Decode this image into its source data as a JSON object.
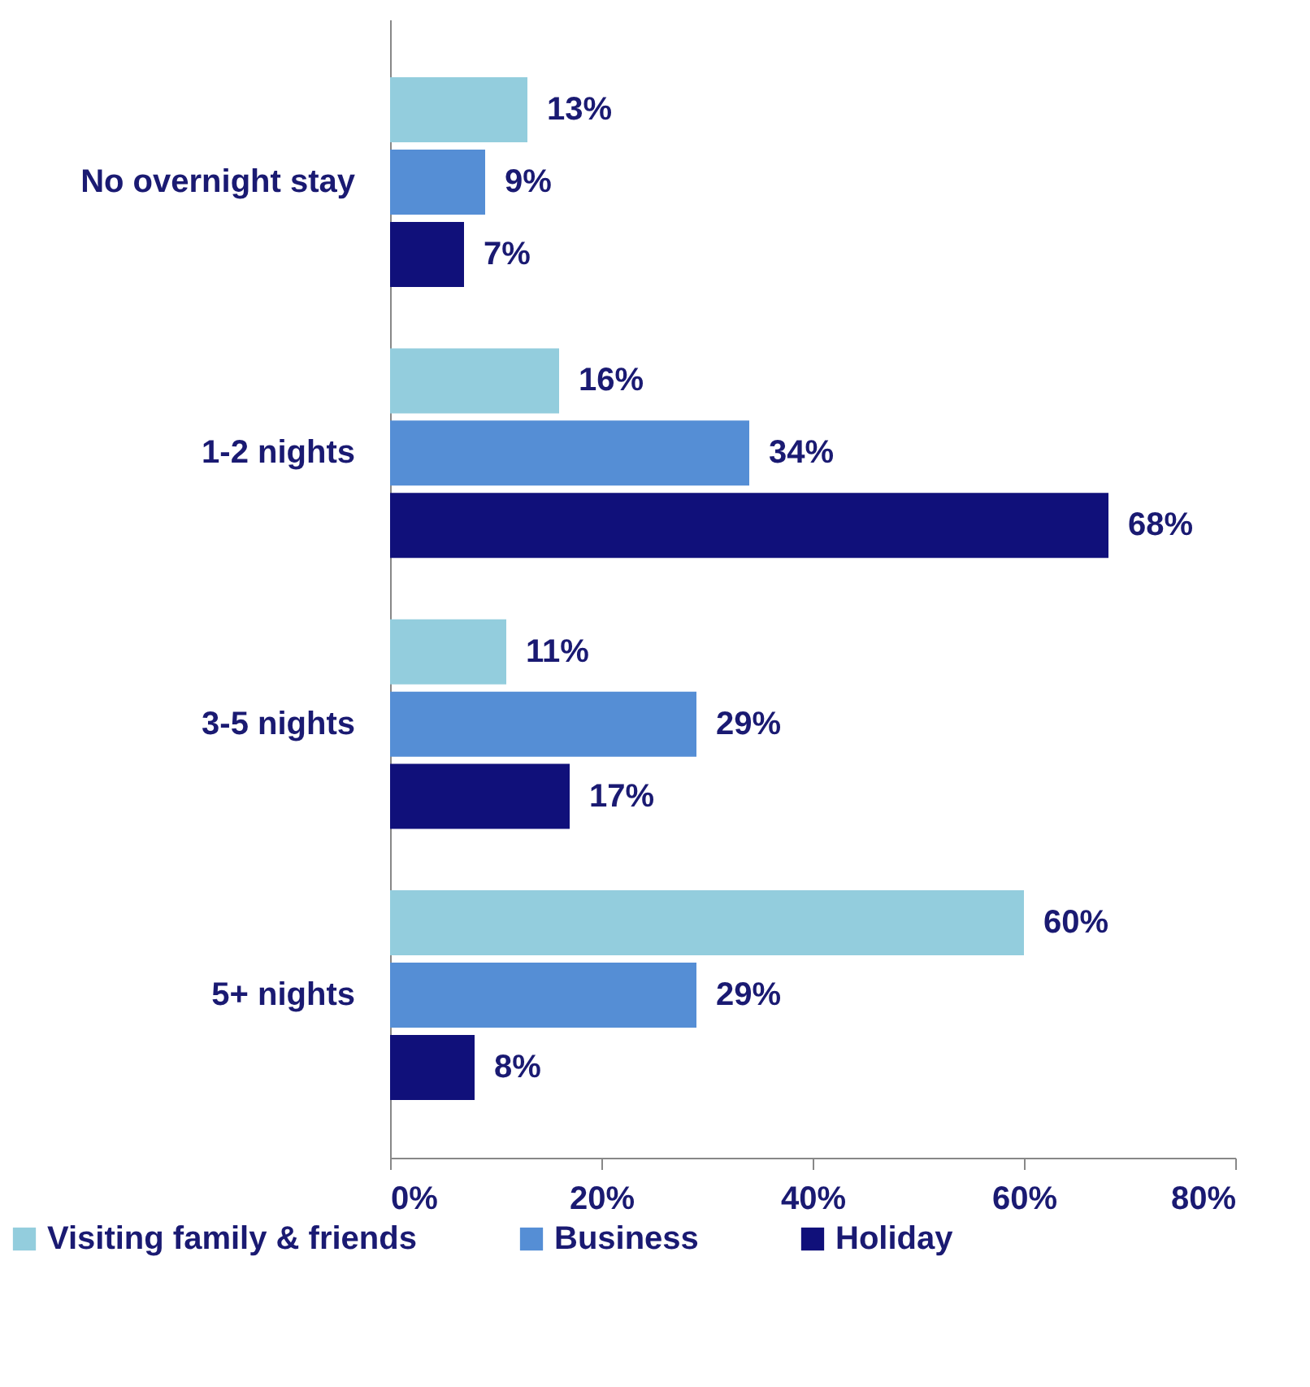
{
  "chart_data": {
    "type": "bar",
    "orientation": "horizontal",
    "categories": [
      "No overnight stay",
      "1-2 nights",
      "3-5 nights",
      "5+ nights"
    ],
    "series": [
      {
        "name": "Visiting family & friends",
        "color": "#93cddd",
        "values": [
          13,
          16,
          11,
          60
        ],
        "value_labels": [
          "13%",
          "16%",
          "11%",
          "60%"
        ]
      },
      {
        "name": "Business",
        "color": "#558ed5",
        "values": [
          9,
          34,
          29,
          29
        ],
        "value_labels": [
          "9%",
          "34%",
          "29%",
          "29%"
        ]
      },
      {
        "name": "Holiday",
        "color": "#10107a",
        "values": [
          7,
          68,
          17,
          8
        ],
        "value_labels": [
          "7%",
          "68%",
          "17%",
          "8%"
        ]
      }
    ],
    "xlim": [
      0,
      80
    ],
    "xticks": [
      {
        "value": 0,
        "label": "0%"
      },
      {
        "value": 20,
        "label": "20%"
      },
      {
        "value": 40,
        "label": "40%"
      },
      {
        "value": 60,
        "label": "60%"
      },
      {
        "value": 80,
        "label": "80%"
      }
    ],
    "grid": false,
    "legend": "bottom"
  }
}
